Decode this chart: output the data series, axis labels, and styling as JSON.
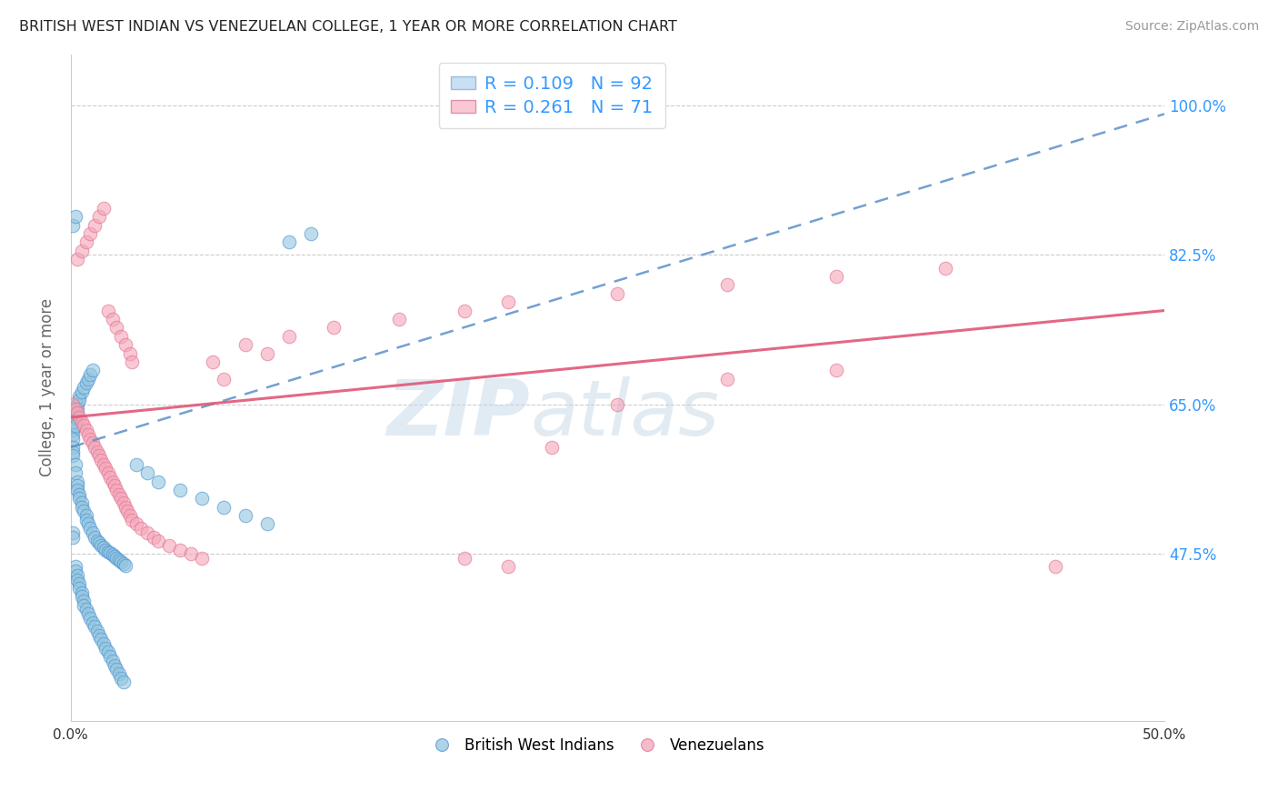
{
  "title": "BRITISH WEST INDIAN VS VENEZUELAN COLLEGE, 1 YEAR OR MORE CORRELATION CHART",
  "source": "Source: ZipAtlas.com",
  "ylabel": "College, 1 year or more",
  "xlim": [
    0.0,
    0.5
  ],
  "ylim": [
    0.28,
    1.06
  ],
  "xtick_values": [
    0.0,
    0.1,
    0.2,
    0.3,
    0.4,
    0.5
  ],
  "xtick_labels": [
    "0.0%",
    "",
    "",
    "",
    "",
    "50.0%"
  ],
  "right_ytick_labels": [
    "47.5%",
    "65.0%",
    "82.5%",
    "100.0%"
  ],
  "right_ytick_values": [
    0.475,
    0.65,
    0.825,
    1.0
  ],
  "blue_color": "#92c5de",
  "pink_color": "#f4a5b8",
  "blue_edge_color": "#4a90d4",
  "pink_edge_color": "#e07090",
  "blue_line_color": "#5b8fc9",
  "pink_line_color": "#e05878",
  "watermark": "ZIPatlas",
  "watermark_zip": "ZIP",
  "watermark_atlas": "atlas",
  "blue_r": "0.109",
  "blue_n": "92",
  "pink_r": "0.261",
  "pink_n": "71",
  "blue_scatter_x": [
    0.001,
    0.001,
    0.001,
    0.001,
    0.001,
    0.001,
    0.001,
    0.002,
    0.002,
    0.002,
    0.002,
    0.002,
    0.003,
    0.003,
    0.003,
    0.003,
    0.003,
    0.004,
    0.004,
    0.004,
    0.004,
    0.005,
    0.005,
    0.005,
    0.006,
    0.006,
    0.007,
    0.007,
    0.007,
    0.008,
    0.008,
    0.009,
    0.009,
    0.01,
    0.01,
    0.011,
    0.012,
    0.013,
    0.014,
    0.015,
    0.016,
    0.017,
    0.018,
    0.019,
    0.02,
    0.021,
    0.022,
    0.023,
    0.024,
    0.025,
    0.001,
    0.001,
    0.002,
    0.002,
    0.003,
    0.003,
    0.004,
    0.004,
    0.005,
    0.005,
    0.006,
    0.006,
    0.007,
    0.008,
    0.009,
    0.01,
    0.011,
    0.012,
    0.013,
    0.014,
    0.015,
    0.016,
    0.017,
    0.018,
    0.019,
    0.02,
    0.021,
    0.022,
    0.023,
    0.024,
    0.03,
    0.035,
    0.04,
    0.05,
    0.06,
    0.07,
    0.08,
    0.09,
    0.1,
    0.11,
    0.001,
    0.002
  ],
  "blue_scatter_y": [
    0.62,
    0.615,
    0.61,
    0.6,
    0.595,
    0.59,
    0.63,
    0.64,
    0.635,
    0.625,
    0.58,
    0.57,
    0.65,
    0.645,
    0.56,
    0.555,
    0.55,
    0.66,
    0.655,
    0.545,
    0.54,
    0.665,
    0.535,
    0.53,
    0.67,
    0.525,
    0.675,
    0.52,
    0.515,
    0.68,
    0.51,
    0.685,
    0.505,
    0.69,
    0.5,
    0.495,
    0.49,
    0.488,
    0.485,
    0.483,
    0.48,
    0.478,
    0.476,
    0.474,
    0.472,
    0.47,
    0.468,
    0.466,
    0.464,
    0.462,
    0.5,
    0.495,
    0.46,
    0.455,
    0.45,
    0.445,
    0.44,
    0.435,
    0.43,
    0.425,
    0.42,
    0.415,
    0.41,
    0.405,
    0.4,
    0.395,
    0.39,
    0.385,
    0.38,
    0.375,
    0.37,
    0.365,
    0.36,
    0.355,
    0.35,
    0.345,
    0.34,
    0.335,
    0.33,
    0.325,
    0.58,
    0.57,
    0.56,
    0.55,
    0.54,
    0.53,
    0.52,
    0.51,
    0.84,
    0.85,
    0.86,
    0.87
  ],
  "pink_scatter_x": [
    0.001,
    0.002,
    0.003,
    0.004,
    0.005,
    0.006,
    0.007,
    0.008,
    0.009,
    0.01,
    0.011,
    0.012,
    0.013,
    0.014,
    0.015,
    0.016,
    0.017,
    0.018,
    0.019,
    0.02,
    0.021,
    0.022,
    0.023,
    0.024,
    0.025,
    0.026,
    0.027,
    0.028,
    0.03,
    0.032,
    0.035,
    0.038,
    0.04,
    0.045,
    0.05,
    0.055,
    0.06,
    0.065,
    0.07,
    0.08,
    0.09,
    0.1,
    0.12,
    0.15,
    0.18,
    0.2,
    0.25,
    0.3,
    0.35,
    0.4,
    0.003,
    0.005,
    0.007,
    0.009,
    0.011,
    0.013,
    0.015,
    0.017,
    0.019,
    0.021,
    0.023,
    0.025,
    0.027,
    0.028,
    0.18,
    0.2,
    0.22,
    0.25,
    0.3,
    0.35,
    0.45
  ],
  "pink_scatter_y": [
    0.65,
    0.645,
    0.64,
    0.635,
    0.63,
    0.625,
    0.62,
    0.615,
    0.61,
    0.605,
    0.6,
    0.595,
    0.59,
    0.585,
    0.58,
    0.575,
    0.57,
    0.565,
    0.56,
    0.555,
    0.55,
    0.545,
    0.54,
    0.535,
    0.53,
    0.525,
    0.52,
    0.515,
    0.51,
    0.505,
    0.5,
    0.495,
    0.49,
    0.485,
    0.48,
    0.475,
    0.47,
    0.7,
    0.68,
    0.72,
    0.71,
    0.73,
    0.74,
    0.75,
    0.76,
    0.77,
    0.78,
    0.79,
    0.8,
    0.81,
    0.82,
    0.83,
    0.84,
    0.85,
    0.86,
    0.87,
    0.88,
    0.76,
    0.75,
    0.74,
    0.73,
    0.72,
    0.71,
    0.7,
    0.47,
    0.46,
    0.6,
    0.65,
    0.68,
    0.69,
    0.46
  ],
  "blue_trendline_x": [
    0.0,
    0.5
  ],
  "blue_trendline_y": [
    0.6,
    0.99
  ],
  "pink_trendline_x": [
    0.0,
    0.5
  ],
  "pink_trendline_y": [
    0.635,
    0.76
  ]
}
